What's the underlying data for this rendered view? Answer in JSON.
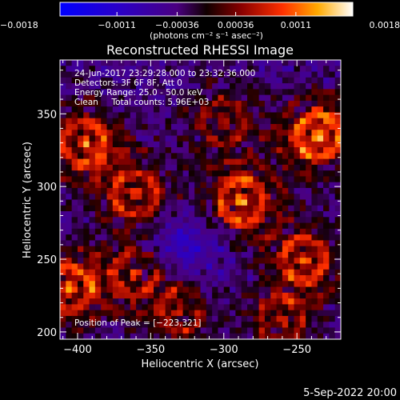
{
  "chart_data": {
    "type": "heatmap",
    "title": "Reconstructed RHESSI Image",
    "xlabel": "Heliocentric X (arcsec)",
    "ylabel": "Heliocentric Y (arcsec)",
    "xlim": [
      -412,
      -220
    ],
    "ylim": [
      195,
      387
    ],
    "xticks": [
      -400,
      -350,
      -300,
      -250
    ],
    "yticks": [
      200,
      250,
      300,
      350
    ],
    "xtick_labels": [
      "−400",
      "−350",
      "−300",
      "−250"
    ],
    "ytick_labels": [
      "200",
      "250",
      "300",
      "350"
    ],
    "colorbar": {
      "range": [
        -0.0018,
        0.0018
      ],
      "ticks": [
        -0.0018,
        -0.0011,
        -0.00036,
        0.00036,
        0.0011,
        0.0018
      ],
      "tick_labels": [
        "−0.0018",
        "−0.0011",
        "−0.00036",
        "0.00036",
        "0.0011",
        "0.0018"
      ],
      "label": "(photons cm⁻² s⁻¹ asec⁻²)"
    },
    "info_lines": [
      "24-Jun-2017 23:29:28.000 to 23:32:36.000",
      "Detectors: 3F 6F 8F, Att 0",
      "Energy Range: 25.0 - 50.0 keV",
      "Clean     Total counts: 5.96E+03"
    ],
    "peak_label": "Position of Peak = [−223,321]",
    "peak_position": [
      -223,
      321
    ],
    "grid": false,
    "hotspots": [
      {
        "x": -235,
        "y": 335,
        "strength": 1.0
      },
      {
        "x": -288,
        "y": 290,
        "strength": 0.85
      },
      {
        "x": -395,
        "y": 330,
        "strength": 0.8
      },
      {
        "x": -360,
        "y": 295,
        "strength": 0.7
      },
      {
        "x": -405,
        "y": 230,
        "strength": 0.8
      },
      {
        "x": -360,
        "y": 240,
        "strength": 0.6
      },
      {
        "x": -245,
        "y": 250,
        "strength": 0.7
      },
      {
        "x": -330,
        "y": 215,
        "strength": 0.6
      },
      {
        "x": -260,
        "y": 208,
        "strength": 0.55
      },
      {
        "x": -300,
        "y": 345,
        "strength": 0.5
      }
    ]
  },
  "footer": {
    "date": "5-Sep-2022 20:00"
  }
}
